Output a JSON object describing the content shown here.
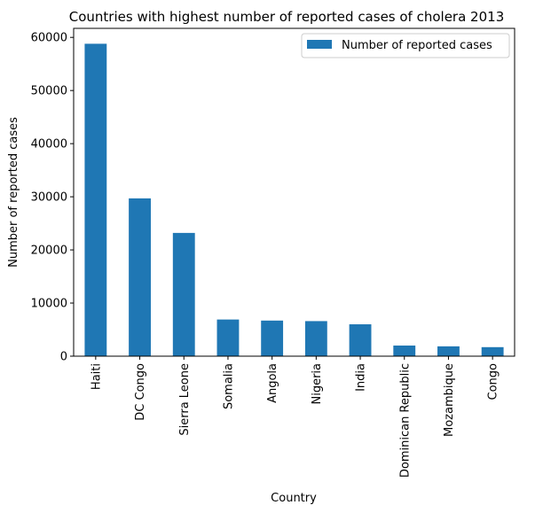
{
  "chart_data": {
    "type": "bar",
    "title": "Countries with highest number of reported cases of cholera 2013",
    "xlabel": "Country",
    "ylabel": "Number of reported cases",
    "categories": [
      "Haiti",
      "DC Congo",
      "Sierra Leone",
      "Somalia",
      "Angola",
      "Nigeria",
      "India",
      "Dominican Republic",
      "Mozambique",
      "Congo"
    ],
    "series": [
      {
        "name": "Number of reported cases",
        "color": "#1f77b4",
        "values": [
          58800,
          29700,
          23200,
          6900,
          6700,
          6600,
          6000,
          2000,
          1850,
          1700
        ]
      }
    ],
    "ylim": [
      0,
      61700
    ],
    "yticks": [
      0,
      10000,
      20000,
      30000,
      40000,
      50000,
      60000
    ],
    "grid": false,
    "legend_position": "top-right"
  }
}
